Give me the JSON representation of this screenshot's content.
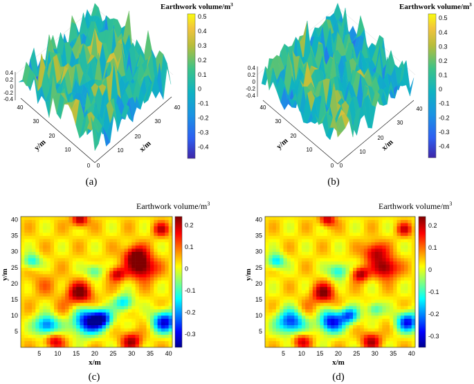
{
  "figure": {
    "captions": [
      "(a)",
      "(b)",
      "(c)",
      "(d)"
    ]
  },
  "chart_data": [
    {
      "id": "a",
      "type": "surface",
      "title": "Earthwork volume/m",
      "title_superscript": "3",
      "xlabel": "x/m",
      "ylabel": "y/m",
      "xlim": [
        0,
        40
      ],
      "ylim": [
        0,
        40
      ],
      "zlim": [
        -0.4,
        0.4
      ],
      "x_ticks": [
        "0",
        "10",
        "20",
        "30",
        "40"
      ],
      "y_ticks": [
        "0",
        "10",
        "20",
        "30",
        "40"
      ],
      "z_ticks": [
        "0.4",
        "0.2",
        "0",
        "-0.2",
        "-0.4"
      ],
      "colorbar": {
        "ticks": [
          "0.5",
          "0.4",
          "0.3",
          "0.2",
          "0.1",
          "0",
          "-0.1",
          "-0.2",
          "-0.3",
          "-0.4"
        ],
        "range": [
          -0.48,
          0.52
        ],
        "colormap": "parula"
      },
      "seed": 11
    },
    {
      "id": "b",
      "type": "surface",
      "title": "Earthwork volume/m",
      "title_superscript": "3",
      "xlabel": "x/m",
      "ylabel": "y/m",
      "xlim": [
        0,
        40
      ],
      "ylim": [
        0,
        40
      ],
      "zlim": [
        -0.4,
        0.4
      ],
      "x_ticks": [
        "0",
        "10",
        "20",
        "30",
        "40"
      ],
      "y_ticks": [
        "0",
        "10",
        "20",
        "30",
        "40"
      ],
      "z_ticks": [
        "0.4",
        "0.2",
        "0",
        "-0.2",
        "-0.4"
      ],
      "colorbar": {
        "ticks": [
          "0.5",
          "0.4",
          "0.3",
          "0.2",
          "0.1",
          "0",
          "-0.1",
          "-0.2",
          "-0.3",
          "-0.4"
        ],
        "range": [
          -0.48,
          0.53
        ],
        "colormap": "parula"
      },
      "seed": 29
    },
    {
      "id": "c",
      "type": "heatmap",
      "title": "Earthwork volume/m",
      "title_superscript": "3",
      "xlabel": "x/m",
      "ylabel": "y/m",
      "xlim": [
        0,
        41
      ],
      "ylim": [
        0,
        41
      ],
      "x_ticks": [
        "5",
        "10",
        "15",
        "20",
        "25",
        "30",
        "35",
        "40"
      ],
      "y_ticks": [
        "5",
        "10",
        "15",
        "20",
        "25",
        "30",
        "35",
        "40"
      ],
      "colorbar": {
        "ticks": [
          "0.2",
          "0.1",
          "0",
          "-0.1",
          "-0.2",
          "-0.3"
        ],
        "range": [
          -0.36,
          0.24
        ],
        "colormap": "jet"
      },
      "features": [
        {
          "x": 7,
          "y": 7,
          "value": -0.28,
          "radius": 2.2
        },
        {
          "x": 18,
          "y": 8,
          "value": -0.34,
          "radius": 2.8
        },
        {
          "x": 22,
          "y": 9,
          "value": -0.3,
          "radius": 2.0
        },
        {
          "x": 39,
          "y": 8,
          "value": -0.33,
          "radius": 2.4
        },
        {
          "x": 28,
          "y": 14,
          "value": -0.2,
          "radius": 1.8
        },
        {
          "x": 20,
          "y": 24,
          "value": -0.15,
          "radius": 1.6
        },
        {
          "x": 3,
          "y": 27,
          "value": -0.18,
          "radius": 1.6
        },
        {
          "x": 16,
          "y": 17,
          "value": 0.22,
          "radius": 2.4
        },
        {
          "x": 31,
          "y": 29,
          "value": 0.2,
          "radius": 2.2
        },
        {
          "x": 33,
          "y": 25,
          "value": 0.23,
          "radius": 2.6
        },
        {
          "x": 26,
          "y": 23,
          "value": 0.18,
          "radius": 1.6
        },
        {
          "x": 9,
          "y": 2,
          "value": 0.16,
          "radius": 1.8
        },
        {
          "x": 30,
          "y": 2,
          "value": 0.18,
          "radius": 2.0
        },
        {
          "x": 16,
          "y": 40,
          "value": 0.2,
          "radius": 1.5
        },
        {
          "x": 38,
          "y": 37,
          "value": 0.15,
          "radius": 1.6
        },
        {
          "x": 6,
          "y": 20,
          "value": 0.05,
          "radius": 3.0
        },
        {
          "x": 12,
          "y": 12,
          "value": 0.03,
          "radius": 2.5
        }
      ]
    },
    {
      "id": "d",
      "type": "heatmap",
      "title": "Earthwork volume/m",
      "title_superscript": "3",
      "xlabel": "x/m",
      "ylabel": "y/m",
      "xlim": [
        0,
        41
      ],
      "ylim": [
        0,
        41
      ],
      "x_ticks": [
        "5",
        "10",
        "15",
        "20",
        "25",
        "30",
        "35",
        "40"
      ],
      "y_ticks": [
        "5",
        "10",
        "15",
        "20",
        "25",
        "30",
        "35",
        "40"
      ],
      "colorbar": {
        "ticks": [
          "0.2",
          "0.1",
          "0",
          "-0.1",
          "-0.2",
          "-0.3"
        ],
        "range": [
          -0.35,
          0.24
        ],
        "colormap": "jet"
      },
      "features": [
        {
          "x": 7,
          "y": 8,
          "value": -0.3,
          "radius": 2.6
        },
        {
          "x": 18,
          "y": 8,
          "value": -0.32,
          "radius": 2.4
        },
        {
          "x": 23,
          "y": 10,
          "value": -0.25,
          "radius": 1.8
        },
        {
          "x": 39,
          "y": 8,
          "value": -0.3,
          "radius": 2.2
        },
        {
          "x": 30,
          "y": 12,
          "value": -0.15,
          "radius": 1.6
        },
        {
          "x": 20,
          "y": 24,
          "value": -0.18,
          "radius": 1.8
        },
        {
          "x": 3,
          "y": 27,
          "value": -0.2,
          "radius": 1.6
        },
        {
          "x": 16,
          "y": 17,
          "value": 0.2,
          "radius": 2.2
        },
        {
          "x": 30,
          "y": 30,
          "value": 0.18,
          "radius": 2.2
        },
        {
          "x": 33,
          "y": 25,
          "value": 0.22,
          "radius": 2.4
        },
        {
          "x": 26,
          "y": 23,
          "value": 0.2,
          "radius": 1.6
        },
        {
          "x": 10,
          "y": 2,
          "value": 0.15,
          "radius": 1.8
        },
        {
          "x": 29,
          "y": 2,
          "value": 0.17,
          "radius": 2.0
        },
        {
          "x": 17,
          "y": 40,
          "value": 0.18,
          "radius": 1.5
        },
        {
          "x": 38,
          "y": 37,
          "value": 0.14,
          "radius": 1.5
        },
        {
          "x": 12,
          "y": 12,
          "value": 0.04,
          "radius": 2.5
        }
      ]
    }
  ]
}
